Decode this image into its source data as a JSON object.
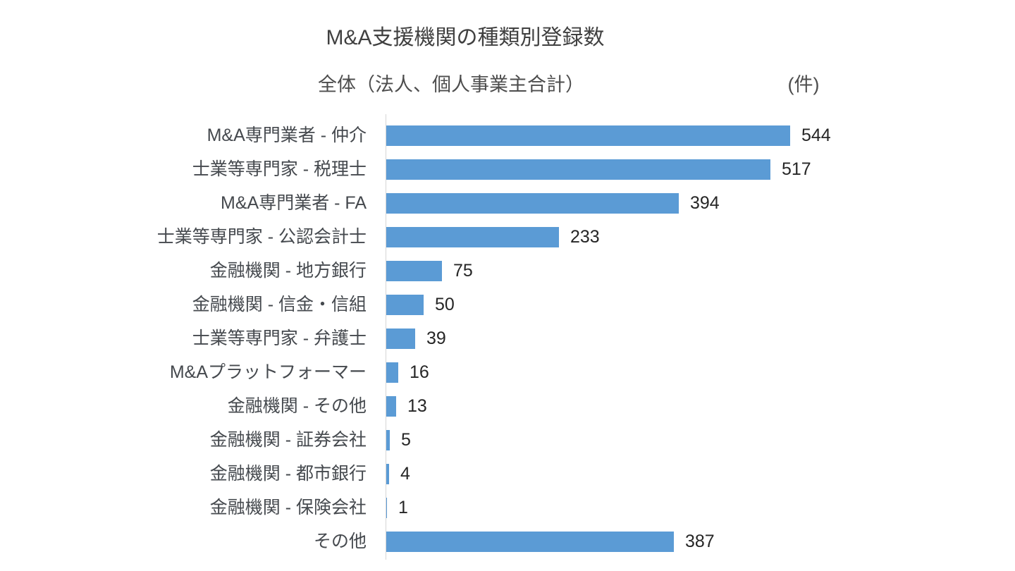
{
  "page": {
    "background_color": "#ffffff"
  },
  "chart": {
    "title": "M&A支援機関の種類別登録数",
    "subtitle": "全体（法人、個人事業主合計）",
    "unit_label": "(件)"
  },
  "chart_data": {
    "type": "bar",
    "orientation": "horizontal",
    "title": "M&A支援機関の種類別登録数",
    "subtitle": "全体（法人、個人事業主合計）",
    "unit": "件",
    "categories": [
      "M&A専門業者 - 仲介",
      "士業等専門家 - 税理士",
      "M&A専門業者 - FA",
      "士業等専門家 - 公認会計士",
      "金融機関 - 地方銀行",
      "金融機関 - 信金・信組",
      "士業等専門家 - 弁護士",
      "M&Aプラットフォーマー",
      "金融機関 - その他",
      "金融機関 - 証券会社",
      "金融機関 - 都市銀行",
      "金融機関 - 保険会社",
      "その他"
    ],
    "values": [
      544,
      517,
      394,
      233,
      75,
      50,
      39,
      16,
      13,
      5,
      4,
      1,
      387
    ],
    "xlim": [
      0,
      560
    ],
    "grid": false,
    "legend": false,
    "data_labels": true,
    "bar_color": "#5B9BD5",
    "axis_line_color": "#D6D6D6",
    "label_color": "#45494E",
    "value_color": "#262626"
  }
}
